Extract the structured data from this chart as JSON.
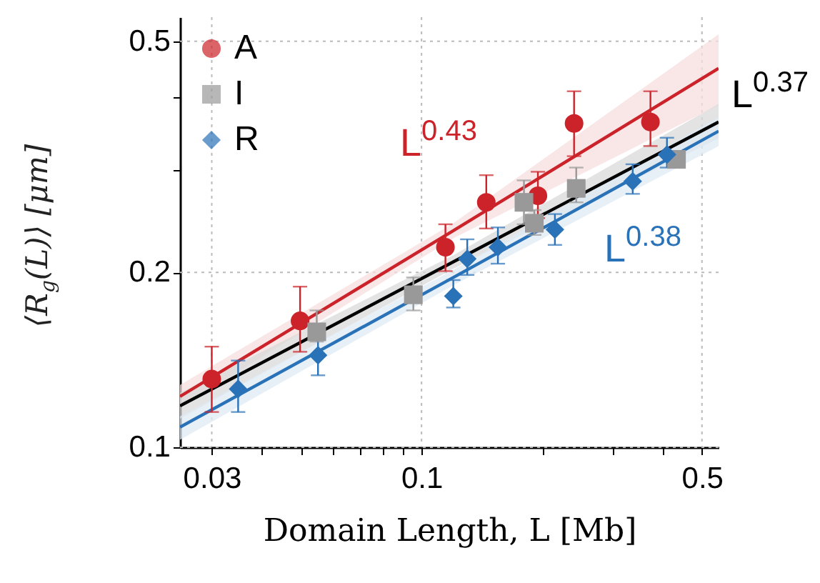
{
  "chart_data": {
    "type": "scatter",
    "xlabel": "Domain Length, L [Mb]",
    "ylabel": "⟨R$_{g}$(L)⟩  [μm]",
    "log": "xy",
    "xlim": [
      0.025,
      0.55
    ],
    "ylim": [
      0.1,
      0.55
    ],
    "xticks": [
      0.03,
      {
        "value": 0.04,
        "label": null
      },
      {
        "value": 0.05,
        "label": null
      },
      {
        "value": 0.06,
        "label": null
      },
      {
        "value": 0.07,
        "label": null
      },
      {
        "value": 0.08,
        "label": null
      },
      {
        "value": 0.09,
        "label": null
      },
      0.1,
      {
        "value": 0.2,
        "label": null
      },
      {
        "value": 0.3,
        "label": null
      },
      {
        "value": 0.4,
        "label": null
      },
      0.5
    ],
    "yticks": [
      0.1,
      0.2,
      {
        "value": 0.3,
        "label": null
      },
      {
        "value": 0.4,
        "label": null
      },
      0.5
    ],
    "grid": true,
    "legend": "top left",
    "series": [
      {
        "name": "A",
        "type": "scatter",
        "marker": "circle",
        "color": "#cc2229",
        "x": [
          0.03,
          0.0498,
          0.1147,
          0.145,
          0.195,
          0.24,
          0.372
        ],
        "values": [
          0.131,
          0.165,
          0.221,
          0.264,
          0.271,
          0.361,
          0.363
        ],
        "errors": [
          [
            0.115,
            0.149
          ],
          [
            0.146,
            0.189
          ],
          [
            0.201,
            0.242
          ],
          [
            0.238,
            0.294
          ],
          [
            0.248,
            0.298
          ],
          [
            0.317,
            0.41
          ],
          [
            0.33,
            0.41
          ]
        ]
      },
      {
        "name": "I",
        "type": "scatter",
        "marker": "square",
        "color": "#999999",
        "x": [
          0.0548,
          0.0954,
          0.18,
          0.191,
          0.243,
          0.432
        ],
        "values": [
          0.158,
          0.183,
          0.264,
          0.243,
          0.279,
          0.313
        ],
        "errors": [
          [
            0.152,
            0.172
          ],
          [
            0.172,
            0.196
          ],
          [
            0.242,
            0.288
          ],
          [
            0.232,
            0.256
          ],
          [
            0.264,
            0.303
          ],
          [
            0.305,
            0.322
          ]
        ]
      },
      {
        "name": "R",
        "type": "scatter",
        "marker": "diamond",
        "color": "#2a72b8",
        "x": [
          0.0349,
          0.0552,
          0.12,
          0.13,
          0.155,
          0.215,
          0.336,
          0.409
        ],
        "values": [
          0.126,
          0.144,
          0.182,
          0.211,
          0.221,
          0.237,
          0.287,
          0.319
        ],
        "errors": [
          [
            0.115,
            0.141
          ],
          [
            0.133,
            0.155
          ],
          [
            0.174,
            0.194
          ],
          [
            0.198,
            0.228
          ],
          [
            0.207,
            0.239
          ],
          [
            0.223,
            0.252
          ],
          [
            0.273,
            0.307
          ],
          [
            0.303,
            0.341
          ]
        ]
      },
      {
        "type": "line",
        "color": "#cc2229",
        "x": [
          0.025,
          0.12,
          0.55
        ],
        "values": [
          0.1223,
          0.236,
          0.449
        ],
        "lower": [
          0.117,
          0.229,
          0.388
        ],
        "upper": [
          0.128,
          0.243,
          0.514
        ]
      },
      {
        "type": "line",
        "color": "#000000",
        "x": [
          0.025,
          0.12,
          0.55
        ],
        "values": [
          0.1178,
          0.2085,
          0.363
        ],
        "lower": [
          0.112,
          0.203,
          0.34
        ],
        "upper": [
          0.124,
          0.214,
          0.39
        ]
      },
      {
        "type": "line",
        "color": "#2a72b8",
        "x": [
          0.025,
          0.12,
          0.55
        ],
        "values": [
          0.1083,
          0.196,
          0.35
        ],
        "lower": [
          0.103,
          0.19,
          0.33
        ],
        "upper": [
          0.113,
          0.202,
          0.37
        ]
      }
    ],
    "annotations": [
      "L$^{0.43}$",
      "L$^{0.37}$",
      "L$^{0.38}$"
    ]
  }
}
